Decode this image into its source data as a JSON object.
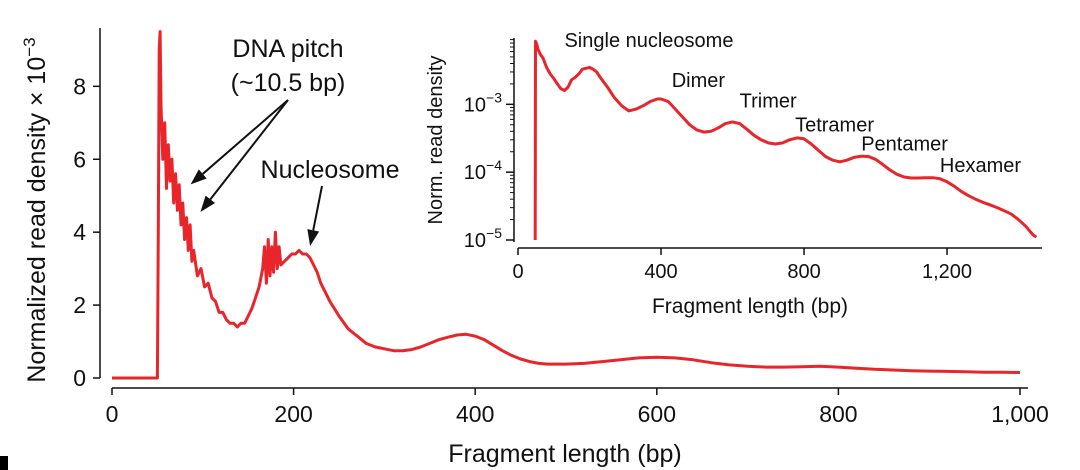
{
  "chart_data": [
    {
      "type": "line",
      "title": "",
      "xlabel": "Fragment length (bp)",
      "ylabel": "Normalized read density × 10",
      "ylabel_exponent": "−3",
      "xlim": [
        0,
        1000
      ],
      "ylim": [
        0,
        9.6
      ],
      "xticks": [
        0,
        200,
        400,
        600,
        800,
        1000
      ],
      "xtick_labels": [
        "0",
        "200",
        "400",
        "600",
        "800",
        "1,000"
      ],
      "yticks": [
        0,
        2,
        4,
        6,
        8
      ],
      "ytick_labels": [
        "0",
        "2",
        "4",
        "6",
        "8"
      ],
      "grid": false,
      "color": "#e8252b",
      "series": [
        {
          "x": [
            0,
            50,
            51,
            52,
            53,
            54,
            56,
            58,
            60,
            62,
            64,
            66,
            68,
            70,
            72,
            74,
            76,
            78,
            80,
            82,
            84,
            86,
            88,
            90,
            94,
            98,
            102,
            106,
            110,
            114,
            118,
            122,
            126,
            130,
            134,
            138,
            142,
            146,
            150,
            154,
            158,
            162,
            166,
            168,
            170,
            172,
            174,
            176,
            178,
            180,
            182,
            184,
            186,
            190,
            194,
            198,
            202,
            206,
            210,
            214,
            218,
            222,
            226,
            230,
            240,
            250,
            260,
            270,
            280,
            290,
            300,
            310,
            320,
            330,
            340,
            350,
            360,
            370,
            380,
            390,
            400,
            410,
            420,
            430,
            440,
            450,
            460,
            470,
            480,
            490,
            500,
            520,
            540,
            560,
            580,
            600,
            620,
            640,
            660,
            680,
            700,
            720,
            740,
            760,
            780,
            800,
            820,
            840,
            860,
            880,
            900,
            920,
            940,
            960,
            980,
            1000
          ],
          "y": [
            0,
            0,
            4.0,
            9.0,
            9.5,
            7.5,
            6.0,
            7.0,
            5.2,
            6.4,
            5.4,
            6.0,
            4.8,
            5.6,
            4.6,
            5.3,
            4.2,
            4.8,
            3.8,
            4.4,
            3.5,
            4.2,
            3.2,
            3.5,
            2.8,
            3.0,
            2.5,
            2.6,
            2.2,
            2.1,
            1.8,
            1.8,
            1.6,
            1.5,
            1.5,
            1.4,
            1.5,
            1.5,
            1.7,
            1.9,
            2.2,
            2.5,
            3.0,
            3.6,
            2.6,
            3.8,
            2.8,
            3.6,
            2.9,
            4.0,
            3.0,
            3.6,
            3.1,
            3.2,
            3.3,
            3.4,
            3.4,
            3.5,
            3.4,
            3.4,
            3.3,
            3.1,
            2.9,
            2.6,
            2.1,
            1.7,
            1.35,
            1.15,
            0.95,
            0.85,
            0.8,
            0.75,
            0.75,
            0.78,
            0.85,
            0.95,
            1.05,
            1.12,
            1.18,
            1.2,
            1.15,
            1.05,
            0.9,
            0.75,
            0.62,
            0.52,
            0.45,
            0.4,
            0.38,
            0.38,
            0.38,
            0.4,
            0.45,
            0.5,
            0.55,
            0.57,
            0.55,
            0.5,
            0.42,
            0.36,
            0.32,
            0.3,
            0.3,
            0.31,
            0.32,
            0.3,
            0.27,
            0.24,
            0.22,
            0.2,
            0.19,
            0.18,
            0.17,
            0.16,
            0.16,
            0.15
          ]
        }
      ],
      "annotations": [
        {
          "text_lines": [
            "DNA pitch",
            "(~10.5 bp)"
          ],
          "arrow_targets": [
            [
              80,
              5.2
            ],
            [
              93,
              4.5
            ]
          ]
        },
        {
          "text_lines": [
            "Nucleosome"
          ],
          "arrow_targets": [
            [
              216,
              3.4
            ]
          ]
        }
      ]
    },
    {
      "type": "line",
      "title": "",
      "xlabel": "Fragment length (bp)",
      "ylabel": "Norm. read density",
      "yscale": "log",
      "xlim": [
        0,
        1460
      ],
      "ylim": [
        1e-05,
        0.0095
      ],
      "xticks": [
        0,
        400,
        800,
        1200
      ],
      "xtick_labels": [
        "0",
        "400",
        "800",
        "1,200"
      ],
      "ytick_powers": [
        -3,
        -4,
        -5
      ],
      "ytick_base": "10",
      "grid": false,
      "color": "#e8252b",
      "series": [
        {
          "x": [
            48,
            49,
            52,
            56,
            62,
            70,
            80,
            90,
            100,
            110,
            120,
            130,
            140,
            150,
            160,
            170,
            180,
            190,
            200,
            210,
            220,
            230,
            250,
            270,
            290,
            310,
            330,
            350,
            370,
            390,
            400,
            420,
            440,
            460,
            480,
            500,
            520,
            540,
            560,
            580,
            600,
            620,
            640,
            660,
            680,
            700,
            720,
            740,
            760,
            780,
            800,
            820,
            840,
            860,
            880,
            900,
            920,
            940,
            960,
            980,
            1000,
            1020,
            1040,
            1060,
            1080,
            1100,
            1120,
            1140,
            1160,
            1180,
            1200,
            1220,
            1240,
            1260,
            1280,
            1300,
            1320,
            1340,
            1360,
            1380,
            1400,
            1420,
            1440,
            1450
          ],
          "y": [
            1e-05,
            0.0085,
            0.0078,
            0.0065,
            0.0055,
            0.0048,
            0.0035,
            0.0028,
            0.0024,
            0.002,
            0.0017,
            0.0016,
            0.0018,
            0.0023,
            0.0025,
            0.0028,
            0.0033,
            0.0034,
            0.0035,
            0.0033,
            0.003,
            0.0025,
            0.0018,
            0.00125,
            0.00095,
            0.0008,
            0.00085,
            0.00095,
            0.0011,
            0.0012,
            0.0012,
            0.0011,
            0.00085,
            0.00065,
            0.0005,
            0.00042,
            0.00039,
            0.0004,
            0.00045,
            0.00052,
            0.00055,
            0.00052,
            0.00043,
            0.00035,
            0.0003,
            0.00027,
            0.00026,
            0.00027,
            0.0003,
            0.00032,
            0.00031,
            0.00026,
            0.00021,
            0.00017,
            0.00015,
            0.000142,
            0.00015,
            0.000165,
            0.000172,
            0.00017,
            0.000155,
            0.00013,
            0.000108,
            9.3e-05,
            8.5e-05,
            8.2e-05,
            8.2e-05,
            8.3e-05,
            8.3e-05,
            8e-05,
            7.2e-05,
            6.2e-05,
            5.2e-05,
            4.5e-05,
            4e-05,
            3.6e-05,
            3.3e-05,
            3e-05,
            2.7e-05,
            2.4e-05,
            2e-05,
            1.6e-05,
            1.2e-05,
            1.1e-05
          ]
        }
      ],
      "annotations": [
        {
          "text": "Single nucleosome",
          "x": 130,
          "y": 0.007
        },
        {
          "text": "Dimer",
          "x": 430,
          "y": 0.0018
        },
        {
          "text": "Trimer",
          "x": 620,
          "y": 0.0009
        },
        {
          "text": "Tetramer",
          "x": 775,
          "y": 0.0004
        },
        {
          "text": "Pentamer",
          "x": 960,
          "y": 0.00021
        },
        {
          "text": "Hexamer",
          "x": 1180,
          "y": 0.0001
        }
      ]
    }
  ]
}
